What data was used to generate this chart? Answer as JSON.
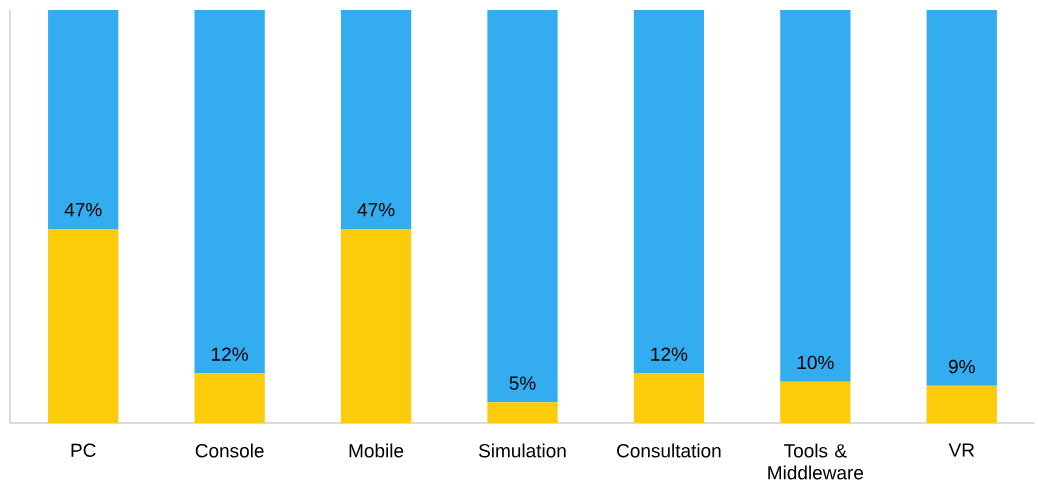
{
  "chart_data": {
    "type": "bar",
    "stacked": true,
    "categories": [
      "PC",
      "Console",
      "Mobile",
      "Simulation",
      "Consultation",
      "Tools & Middleware",
      "VR"
    ],
    "series": [
      {
        "color": "#fccb0a",
        "values": [
          47,
          12,
          47,
          5,
          12,
          10,
          9
        ],
        "value_labels": [
          "47%",
          "12%",
          "47%",
          "5%",
          "12%",
          "10%",
          "9%"
        ]
      },
      {
        "color": "#33adf0",
        "values": [
          53,
          88,
          53,
          95,
          88,
          90,
          91
        ]
      }
    ],
    "ylim": [
      0,
      100
    ],
    "tick_labels": "x"
  }
}
